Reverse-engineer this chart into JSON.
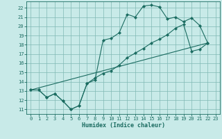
{
  "xlabel": "Humidex (Indice chaleur)",
  "bg_color": "#c8eae8",
  "grid_color": "#80b8b4",
  "line_color": "#1a6b60",
  "spine_color": "#1a6b60",
  "xlim": [
    -0.5,
    23.5
  ],
  "ylim": [
    10.5,
    22.7
  ],
  "xticks": [
    0,
    1,
    2,
    3,
    4,
    5,
    6,
    7,
    8,
    9,
    10,
    11,
    12,
    13,
    14,
    15,
    16,
    17,
    18,
    19,
    20,
    21,
    22,
    23
  ],
  "yticks": [
    11,
    12,
    13,
    14,
    15,
    16,
    17,
    18,
    19,
    20,
    21,
    22
  ],
  "line1_x": [
    0,
    1,
    2,
    3,
    4,
    5,
    6,
    7,
    8,
    9,
    10,
    11,
    12,
    13,
    14,
    15,
    16,
    17,
    18,
    19,
    20,
    21,
    22
  ],
  "line1_y": [
    13.1,
    13.1,
    12.3,
    12.7,
    11.9,
    11.0,
    11.4,
    13.8,
    14.2,
    18.5,
    18.7,
    19.3,
    21.3,
    21.0,
    22.2,
    22.3,
    22.1,
    20.8,
    21.0,
    20.5,
    20.9,
    20.1,
    18.2
  ],
  "line2_x": [
    0,
    1,
    2,
    3,
    4,
    5,
    6,
    7,
    8,
    9,
    10,
    11,
    12,
    13,
    14,
    15,
    16,
    17,
    18,
    19,
    20,
    21,
    22
  ],
  "line2_y": [
    13.1,
    13.1,
    12.3,
    12.7,
    11.9,
    11.0,
    11.4,
    13.8,
    14.4,
    14.9,
    15.2,
    15.8,
    16.6,
    17.1,
    17.6,
    18.2,
    18.6,
    19.1,
    19.8,
    20.2,
    17.3,
    17.5,
    18.2
  ],
  "line3_x": [
    0,
    22
  ],
  "line3_y": [
    13.1,
    18.2
  ]
}
